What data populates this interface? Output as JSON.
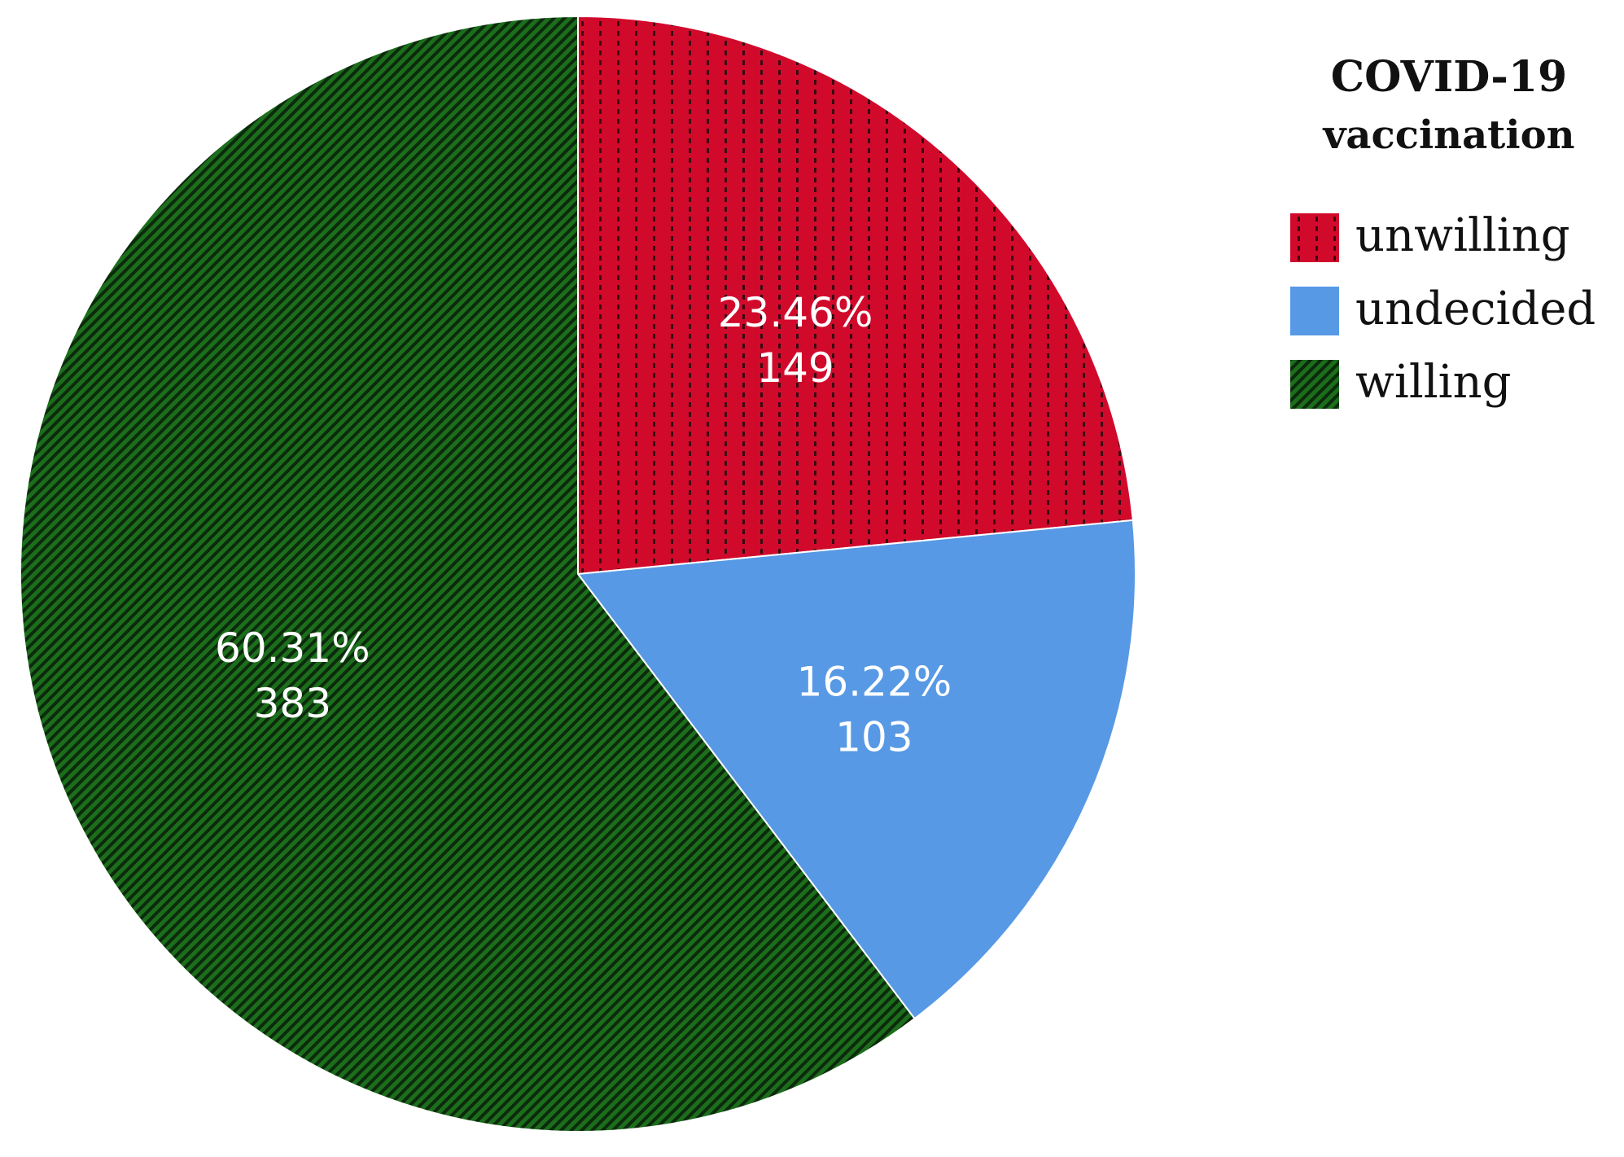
{
  "chart_data": {
    "type": "pie",
    "title": "",
    "legend": {
      "title_lines": [
        "COVID-19",
        "vaccination"
      ],
      "placement": "right"
    },
    "start_angle_deg": 0,
    "direction": "clockwise",
    "slices": [
      {
        "name": "unwilling",
        "percent": 23.46,
        "count": 149,
        "percent_label": "23.46%",
        "count_label": "149",
        "color": "#d10a2c",
        "pattern": "dotted"
      },
      {
        "name": "undecided",
        "percent": 16.22,
        "count": 103,
        "percent_label": "16.22%",
        "count_label": "103",
        "color": "#5799e5",
        "pattern": "solid"
      },
      {
        "name": "willing",
        "percent": 60.31,
        "count": 383,
        "percent_label": "60.31%",
        "count_label": "383",
        "color": "#1c6e1c",
        "pattern": "diagonal-stripes"
      }
    ]
  }
}
